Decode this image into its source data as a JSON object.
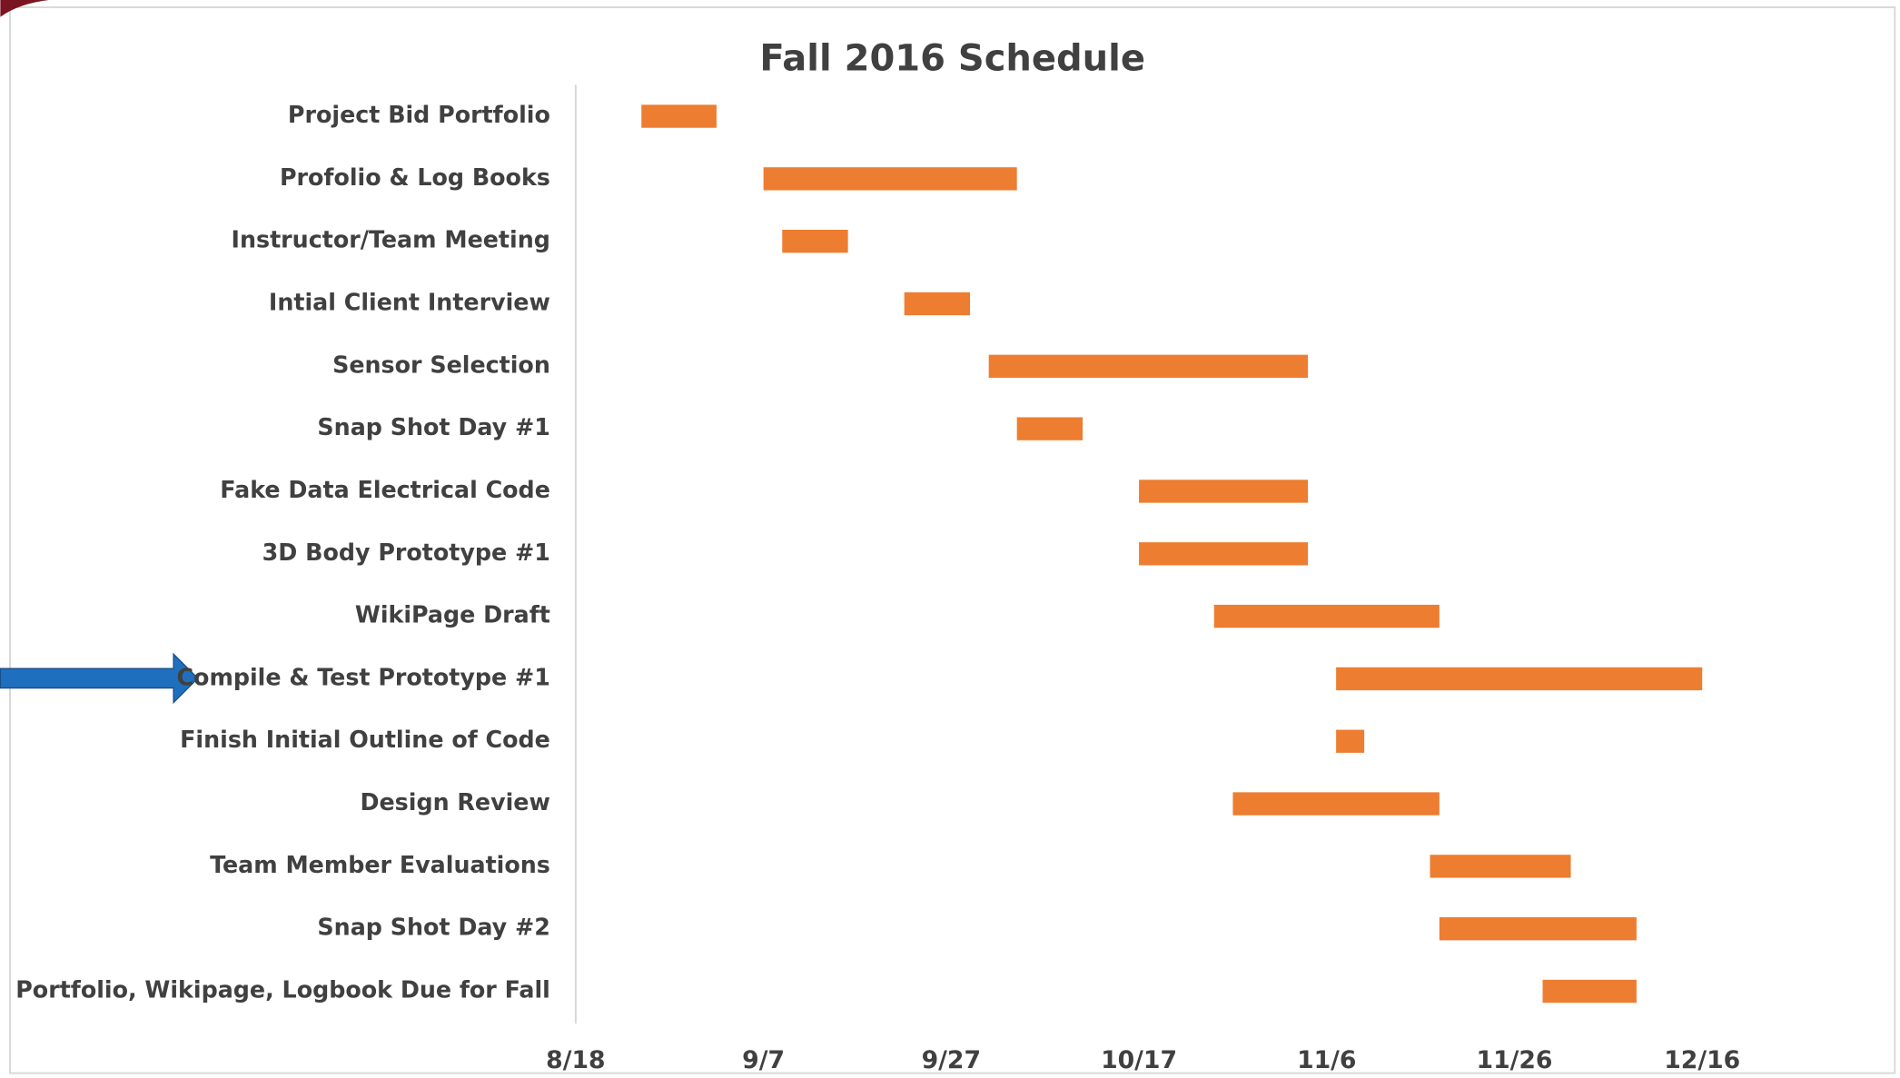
{
  "chart_data": {
    "type": "gantt",
    "title": "Fall 2016 Schedule",
    "categories": [
      "Project Bid Portfolio",
      "Profolio & Log Books",
      "Instructor/Team Meeting",
      "Intial Client Interview",
      "Sensor Selection",
      "Snap Shot Day #1",
      "Fake Data Electrical Code",
      "3D Body Prototype #1",
      "WikiPage Draft",
      "Compile & Test Prototype #1",
      "Finish Initial Outline of Code",
      "Design Review",
      "Team Member Evaluations",
      "Snap Shot Day #2",
      "Portfolio, Wikipage, Logbook Due for Fall"
    ],
    "starts": [
      "8/25",
      "9/7",
      "9/9",
      "9/22",
      "10/1",
      "10/4",
      "10/17",
      "10/17",
      "10/25",
      "11/7",
      "11/7",
      "10/27",
      "11/17",
      "11/18",
      "11/29"
    ],
    "durations": [
      8,
      27,
      7,
      7,
      34,
      7,
      18,
      18,
      24,
      39,
      3,
      22,
      15,
      21,
      10
    ],
    "color": "#ed7d31",
    "xlim": [
      "8/18",
      "12/16"
    ],
    "xticks": [
      "8/18",
      "9/7",
      "9/27",
      "10/17",
      "11/6",
      "11/26",
      "12/16"
    ]
  }
}
